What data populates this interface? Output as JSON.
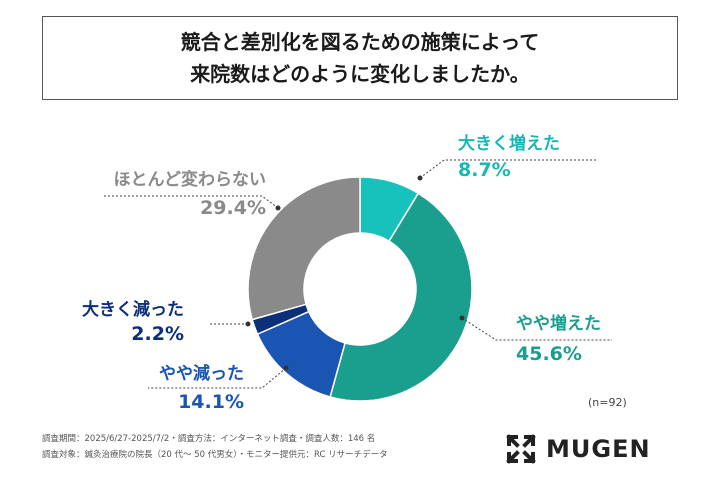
{
  "title": {
    "line1": "競合と差別化を図るための施策によって",
    "line2": "来院数はどのように変化しましたか。"
  },
  "chart_data": {
    "type": "pie",
    "style": "donut",
    "slices": [
      {
        "label": "大きく増えた",
        "value": 8.7,
        "display": "8.7%",
        "color": "#17c2bd",
        "text_color": "#17b8b3"
      },
      {
        "label": "やや増えた",
        "value": 45.6,
        "display": "45.6%",
        "color": "#1a9e8e",
        "text_color": "#1a9e8e"
      },
      {
        "label": "やや減った",
        "value": 14.1,
        "display": "14.1%",
        "color": "#1b55b3",
        "text_color": "#1b55b3"
      },
      {
        "label": "大きく減った",
        "value": 2.2,
        "display": "2.2%",
        "color": "#0c2f7a",
        "text_color": "#0c2f7a"
      },
      {
        "label": "ほとんど変わらない",
        "value": 29.4,
        "display": "29.4%",
        "color": "#8a8a8a",
        "text_color": "#8a8a8a"
      }
    ],
    "sample_size": "(n=92)"
  },
  "footnotes": {
    "line1": "調査期間：2025/6/27-2025/7/2・調査方法：インターネット調査・調査人数：146 名",
    "line2": "調査対象：鍼灸治療院の院長（20 代〜 50 代男女）・モニター提供元：RC リサーチデータ"
  },
  "logo": {
    "text": "MUGEN",
    "icon": "mugen-x-logo-icon"
  }
}
